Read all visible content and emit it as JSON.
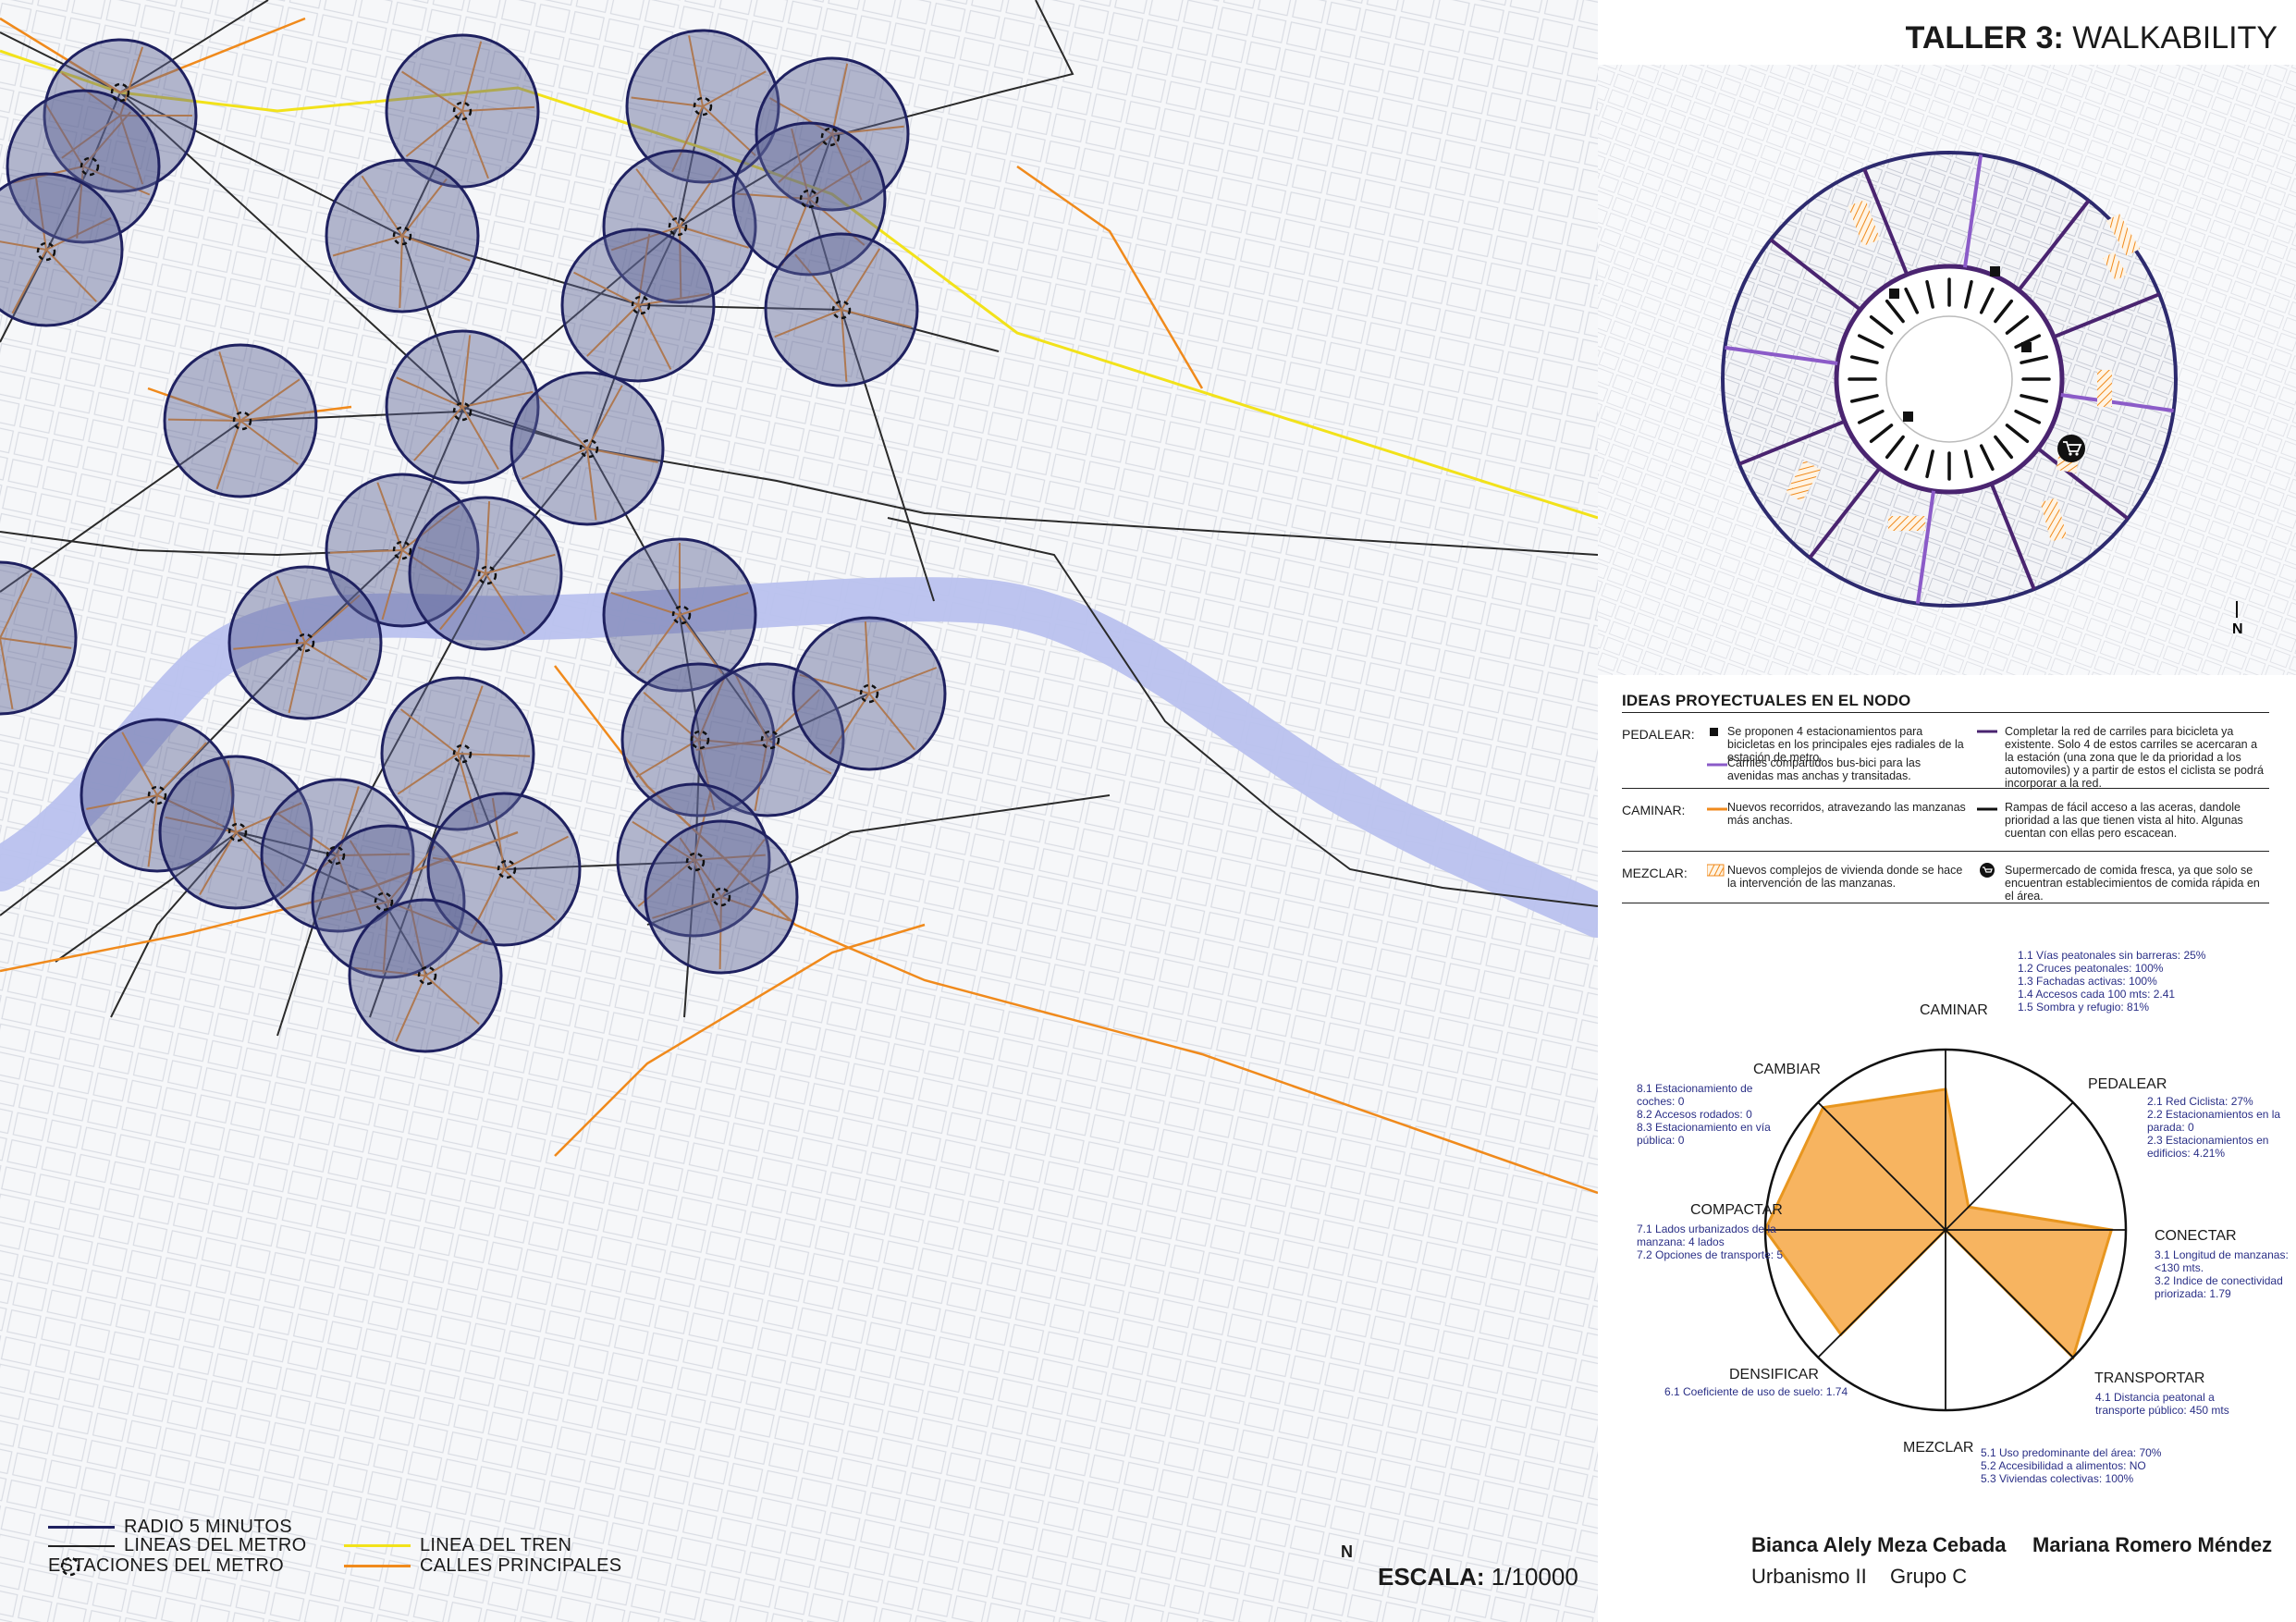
{
  "map_legend": {
    "radius": "RADIO 5 MINUTOS",
    "metro_lines": "LINEAS DEL METRO",
    "metro_stations": "ESTACIONES DEL METRO",
    "train_line": "LINEA DEL TREN",
    "main_streets": "CALLES PRINCIPALES"
  },
  "scale": {
    "label": "ESCALA:",
    "value": "1/10000"
  },
  "north": "N",
  "title": {
    "prefix": "TALLER 3:",
    "name": "WALKABILITY"
  },
  "ideas": {
    "heading": "IDEAS PROYECTUALES EN EL NODO",
    "pedalear": {
      "label": "PEDALEAR:",
      "a": "Se proponen 4 estacionamientos para bicicletas en los principales ejes radiales de la estación de metro.",
      "b": "Completar la red de carriles para bicicleta ya existente. Solo 4 de estos carriles se acercaran a la estación (una zona que le da prioridad a los automoviles) y a partir de estos el ciclista se podrá incorporar a la red.",
      "c": "Carriles compartidos bus-bici para las avenidas mas anchas y transitadas."
    },
    "caminar": {
      "label": "CAMINAR:",
      "a": "Nuevos recorridos, atravezando las manzanas más anchas.",
      "b": "Rampas de fácil acceso a las aceras, dandole prioridad a las que tienen vista al hito. Algunas cuentan con ellas pero escacean."
    },
    "mezclar": {
      "label": "MEZCLAR:",
      "a": "Nuevos complejos de vivienda donde se hace la intervención de las manzanas.",
      "b": "Supermercado de comida fresca, ya que solo se encuentran establecimientos de comida rápida en el área."
    }
  },
  "radar": {
    "axes": {
      "caminar": "CAMINAR",
      "pedalear": "PEDALEAR",
      "conectar": "CONECTAR",
      "transportar": "TRANSPORTAR",
      "mezclar": "MEZCLAR",
      "densificar": "DENSIFICAR",
      "compactar": "COMPACTAR",
      "cambiar": "CAMBIAR"
    },
    "stats": {
      "caminar": [
        "1.1 Vías peatonales sin barreras: 25%",
        "1.2 Cruces peatonales: 100%",
        "1.3 Fachadas activas: 100%",
        "1.4 Accesos cada 100 mts: 2.41",
        "1.5 Sombra y refugio: 81%"
      ],
      "pedalear": [
        "2.1 Red Ciclista: 27%",
        "2.2 Estacionamientos en la",
        "parada: 0",
        "2.3 Estacionamientos en",
        "edificios: 4.21%"
      ],
      "conectar": [
        "3.1 Longitud de manzanas:",
        "<130 mts.",
        "3.2 Indice de conectividad",
        "priorizada: 1.79"
      ],
      "transportar": [
        "4.1 Distancia peatonal a",
        "transporte público: 450 mts"
      ],
      "mezclar": [
        "5.1 Uso predominante del área: 70%",
        "5.2 Accesibilidad a alimentos: NO",
        "5.3 Viviendas colectivas: 100%"
      ],
      "densificar": [
        "6.1 Coeficiente de uso de suelo: 1.74"
      ],
      "compactar": [
        "7.1 Lados urbanizados de la",
        "manzana: 4 lados",
        "7.2 Opciones de transporte: 5"
      ],
      "cambiar": [
        "8.1 Estacionamiento de",
        "coches: 0",
        "8.2 Accesos rodados: 0",
        "8.3 Estacionamiento en vía",
        "pública: 0"
      ]
    }
  },
  "radar_values": [
    0.78,
    0.18,
    0.92,
    1.0,
    0.0,
    0.82,
    1.0,
    0.96
  ],
  "authors": {
    "name1": "Bianca Alely Meza Cebada",
    "name2": "Mariana Romero Méndez",
    "course": "Urbanismo II",
    "group": "Grupo C"
  },
  "colors": {
    "circle": "#1f2160",
    "street": "#f08a1c",
    "train": "#f2e21a",
    "river": "#b9c1ee",
    "bike": "#4a2470",
    "fill": "#f7b460"
  }
}
